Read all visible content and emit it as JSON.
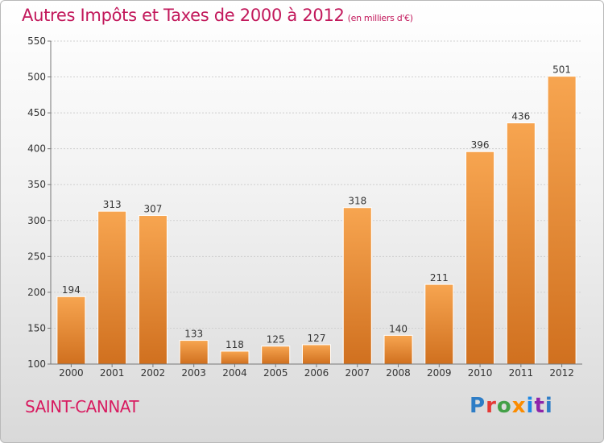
{
  "title": "Autres Impôts et Taxes de 2000 à 2012",
  "unit": "(en milliers d'€)",
  "commune": "SAINT-CANNAT",
  "logo": "Proxiti",
  "colors": {
    "bar_light": "#f7a550",
    "bar_dark": "#d0701f",
    "title": "#c2185b",
    "axis": "#777777"
  },
  "chart_data": {
    "type": "bar",
    "title": "Autres Impôts et Taxes de 2000 à 2012",
    "xlabel": "",
    "ylabel": "",
    "categories": [
      "2000",
      "2001",
      "2002",
      "2003",
      "2004",
      "2005",
      "2006",
      "2007",
      "2008",
      "2009",
      "2010",
      "2011",
      "2012"
    ],
    "values": [
      194,
      313,
      307,
      133,
      118,
      125,
      127,
      318,
      140,
      211,
      396,
      436,
      501
    ],
    "ylim": [
      100,
      550
    ],
    "yticks": [
      100,
      150,
      200,
      250,
      300,
      350,
      400,
      450,
      500,
      550
    ],
    "grid": true,
    "legend": "none"
  }
}
